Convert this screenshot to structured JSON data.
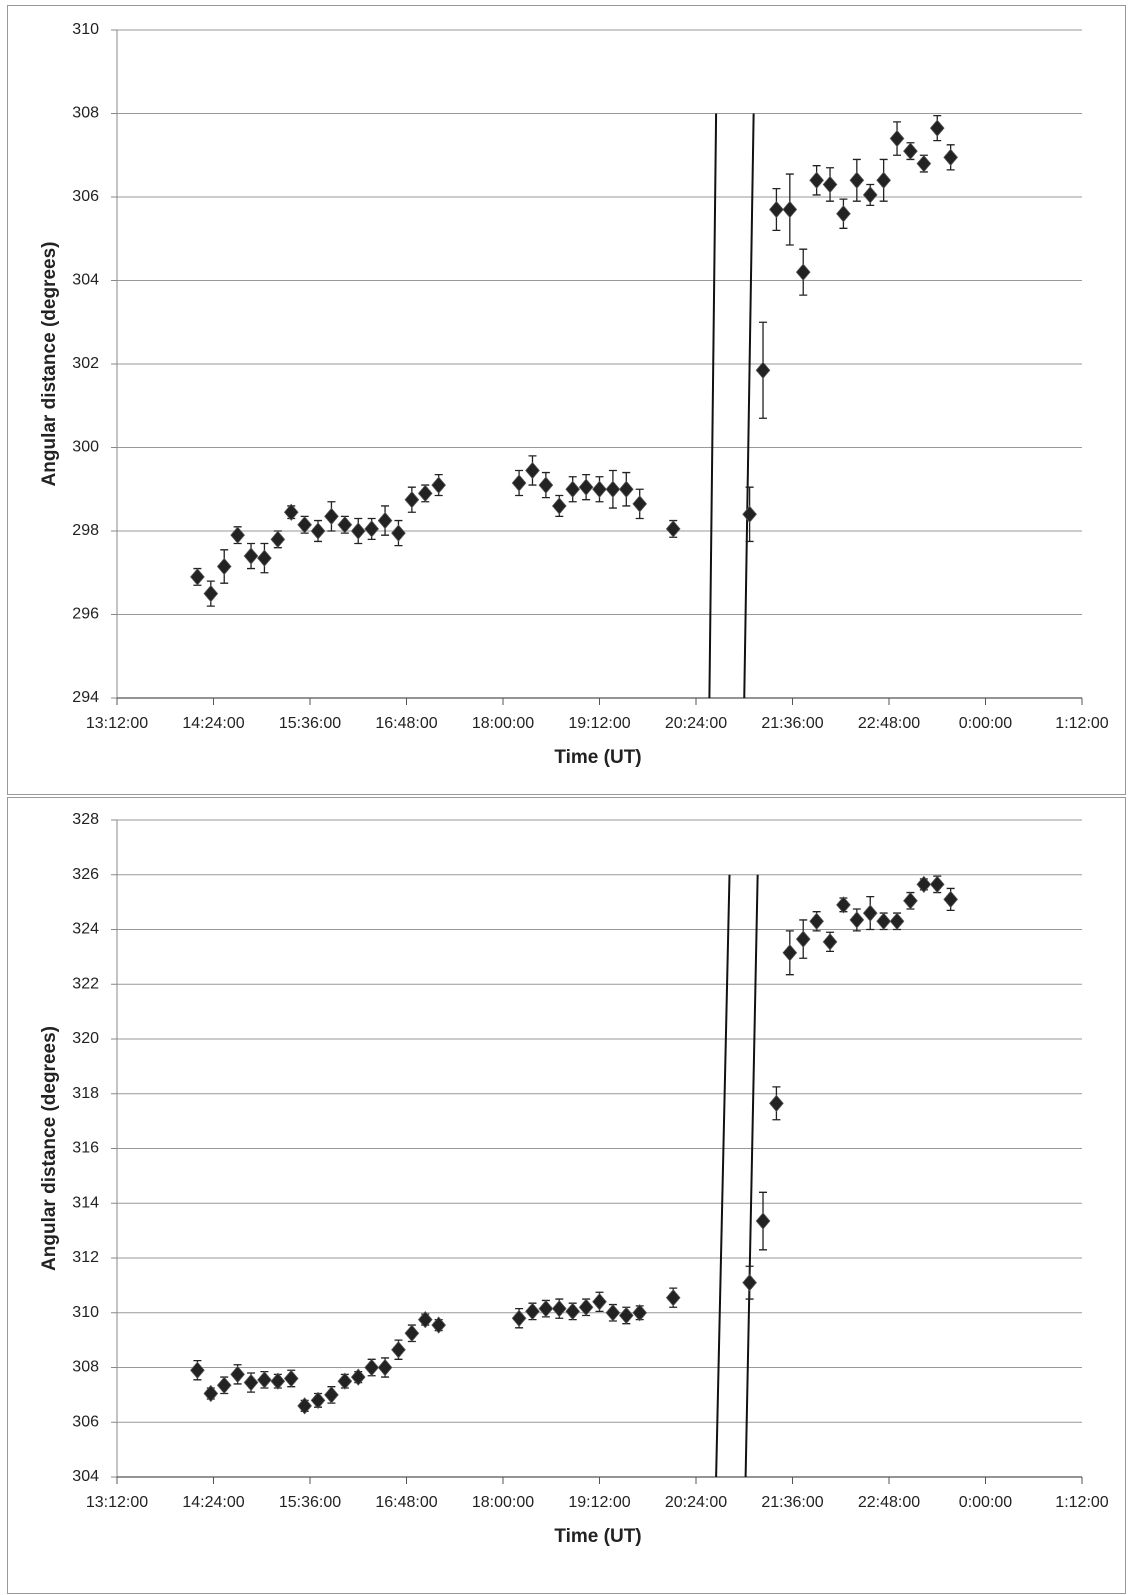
{
  "chart_data": [
    {
      "type": "scatter",
      "x_label": "Time (UT)",
      "y_label": "Angular distance (degrees)",
      "color": "#222222",
      "grid": true,
      "xlim": [
        792,
        1512
      ],
      "xticks": [
        {
          "value": 792,
          "label": "13:12:00"
        },
        {
          "value": 864,
          "label": "14:24:00"
        },
        {
          "value": 936,
          "label": "15:36:00"
        },
        {
          "value": 1008,
          "label": "16:48:00"
        },
        {
          "value": 1080,
          "label": "18:00:00"
        },
        {
          "value": 1152,
          "label": "19:12:00"
        },
        {
          "value": 1224,
          "label": "20:24:00"
        },
        {
          "value": 1296,
          "label": "21:36:00"
        },
        {
          "value": 1368,
          "label": "22:48:00"
        },
        {
          "value": 1440,
          "label": "0:00:00"
        },
        {
          "value": 1512,
          "label": "1:12:00"
        }
      ],
      "ylim": [
        294,
        310
      ],
      "yticks": [
        294,
        296,
        298,
        300,
        302,
        304,
        306,
        308,
        310
      ],
      "x": [
        852,
        862,
        872,
        882,
        892,
        902,
        912,
        922,
        932,
        942,
        952,
        962,
        972,
        982,
        992,
        1002,
        1012,
        1022,
        1032,
        1092,
        1102,
        1112,
        1122,
        1132,
        1142,
        1152,
        1162,
        1172,
        1182,
        1207,
        1264,
        1274,
        1284,
        1294,
        1304,
        1314,
        1324,
        1334,
        1344,
        1354,
        1364,
        1374,
        1384,
        1394,
        1404,
        1414
      ],
      "values": [
        296.9,
        296.5,
        297.15,
        297.9,
        297.4,
        297.35,
        297.8,
        298.45,
        298.15,
        298.0,
        298.35,
        298.15,
        298.0,
        298.05,
        298.25,
        297.95,
        298.75,
        298.9,
        299.1,
        299.15,
        299.45,
        299.1,
        298.6,
        299.0,
        299.05,
        299.0,
        299.0,
        299.0,
        298.65,
        298.05,
        298.4,
        301.85,
        305.7,
        305.7,
        304.2,
        306.4,
        306.3,
        305.6,
        306.4,
        306.05,
        306.4,
        307.4,
        307.1,
        306.8,
        307.65,
        306.95
      ],
      "errors": [
        0.2,
        0.3,
        0.4,
        0.2,
        0.3,
        0.35,
        0.2,
        0.15,
        0.2,
        0.25,
        0.35,
        0.2,
        0.3,
        0.25,
        0.35,
        0.3,
        0.3,
        0.2,
        0.25,
        0.3,
        0.35,
        0.3,
        0.25,
        0.3,
        0.3,
        0.3,
        0.45,
        0.4,
        0.35,
        0.2,
        0.65,
        1.15,
        0.5,
        0.85,
        0.55,
        0.35,
        0.4,
        0.35,
        0.5,
        0.25,
        0.5,
        0.4,
        0.2,
        0.2,
        0.3,
        0.3
      ],
      "lines": [
        {
          "x": [
            1234,
            1239
          ],
          "y": [
            294,
            308
          ]
        },
        {
          "x": [
            1260,
            1267
          ],
          "y": [
            294,
            308
          ]
        }
      ]
    },
    {
      "type": "scatter",
      "x_label": "Time (UT)",
      "y_label": "Angular distance (degrees)",
      "color": "#222222",
      "grid": true,
      "xlim": [
        792,
        1512
      ],
      "xticks": [
        {
          "value": 792,
          "label": "13:12:00"
        },
        {
          "value": 864,
          "label": "14:24:00"
        },
        {
          "value": 936,
          "label": "15:36:00"
        },
        {
          "value": 1008,
          "label": "16:48:00"
        },
        {
          "value": 1080,
          "label": "18:00:00"
        },
        {
          "value": 1152,
          "label": "19:12:00"
        },
        {
          "value": 1224,
          "label": "20:24:00"
        },
        {
          "value": 1296,
          "label": "21:36:00"
        },
        {
          "value": 1368,
          "label": "22:48:00"
        },
        {
          "value": 1440,
          "label": "0:00:00"
        },
        {
          "value": 1512,
          "label": "1:12:00"
        }
      ],
      "ylim": [
        304,
        328
      ],
      "yticks": [
        304,
        306,
        308,
        310,
        312,
        314,
        316,
        318,
        320,
        322,
        324,
        326,
        328
      ],
      "x": [
        852,
        862,
        872,
        882,
        892,
        902,
        912,
        922,
        932,
        942,
        952,
        962,
        972,
        982,
        992,
        1002,
        1012,
        1022,
        1032,
        1092,
        1102,
        1112,
        1122,
        1132,
        1142,
        1152,
        1162,
        1172,
        1182,
        1207,
        1264,
        1274,
        1284,
        1294,
        1304,
        1314,
        1324,
        1334,
        1344,
        1354,
        1364,
        1374,
        1384,
        1394,
        1404,
        1414
      ],
      "values": [
        307.9,
        307.05,
        307.35,
        307.75,
        307.45,
        307.55,
        307.5,
        307.6,
        306.6,
        306.8,
        307.0,
        307.5,
        307.65,
        308.0,
        308.0,
        308.65,
        309.25,
        309.75,
        309.55,
        309.8,
        310.05,
        310.15,
        310.15,
        310.05,
        310.2,
        310.4,
        310.0,
        309.9,
        310.0,
        310.55,
        311.1,
        313.35,
        317.65,
        323.15,
        323.65,
        324.3,
        323.55,
        324.9,
        324.35,
        324.6,
        324.3,
        324.3,
        325.05,
        325.65,
        325.65,
        325.1
      ],
      "errors": [
        0.35,
        0.2,
        0.3,
        0.35,
        0.35,
        0.3,
        0.25,
        0.3,
        0.2,
        0.25,
        0.3,
        0.25,
        0.2,
        0.3,
        0.35,
        0.35,
        0.3,
        0.2,
        0.2,
        0.35,
        0.3,
        0.3,
        0.35,
        0.3,
        0.3,
        0.35,
        0.3,
        0.3,
        0.25,
        0.35,
        0.6,
        1.05,
        0.6,
        0.8,
        0.7,
        0.35,
        0.35,
        0.25,
        0.4,
        0.6,
        0.3,
        0.3,
        0.3,
        0.2,
        0.3,
        0.4
      ],
      "lines": [
        {
          "x": [
            1239,
            1249
          ],
          "y": [
            304,
            326
          ]
        },
        {
          "x": [
            1261,
            1270
          ],
          "y": [
            304,
            326
          ]
        }
      ]
    }
  ]
}
